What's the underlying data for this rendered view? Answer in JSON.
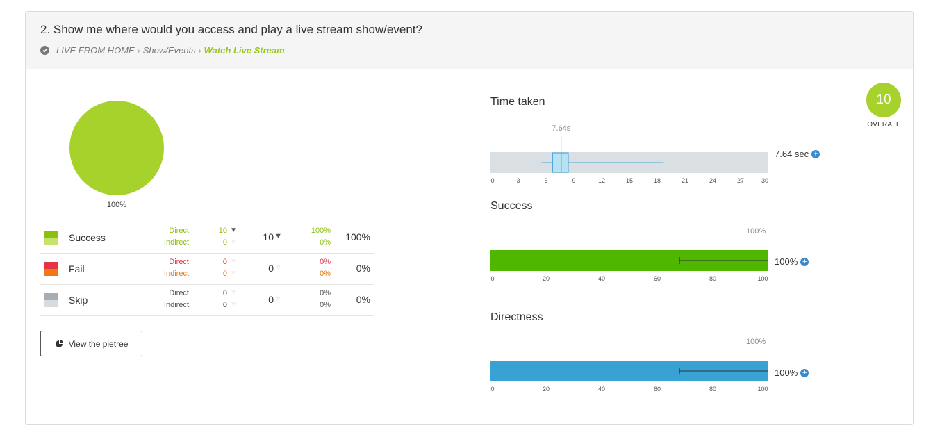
{
  "question": "2. Show me where would you access and play a live stream show/event?",
  "breadcrumb": [
    "LIVE FROM HOME",
    "Show/Events",
    "Watch Live Stream"
  ],
  "pie": {
    "label": "100%",
    "color": "#a6d22b"
  },
  "results": [
    {
      "label": "Success",
      "colors": [
        "#8cbf0e",
        "#c5e36a"
      ],
      "direct_label": "Direct",
      "indirect_label": "Indirect",
      "label_colors": [
        "#8cbf0e",
        "#8cbf0e"
      ],
      "direct": "10",
      "indirect": "0",
      "total": "10",
      "direct_pct": "100%",
      "indirect_pct": "0%",
      "total_pct": "100%",
      "value_colors": [
        "#8cbf0e",
        "#8cbf0e"
      ]
    },
    {
      "label": "Fail",
      "colors": [
        "#e33546",
        "#f07916"
      ],
      "direct_label": "Direct",
      "indirect_label": "Indirect",
      "label_colors": [
        "#e03546",
        "#e77b0d"
      ],
      "direct": "0",
      "indirect": "0",
      "total": "0",
      "direct_pct": "0%",
      "indirect_pct": "0%",
      "total_pct": "0%",
      "value_colors": [
        "#e03546",
        "#e77b0d"
      ]
    },
    {
      "label": "Skip",
      "colors": [
        "#a7adb2",
        "#d6dbdd"
      ],
      "direct_label": "Direct",
      "indirect_label": "Indirect",
      "label_colors": [
        "#555555",
        "#555555"
      ],
      "direct": "0",
      "indirect": "0",
      "total": "0",
      "direct_pct": "0%",
      "indirect_pct": "0%",
      "total_pct": "0%",
      "value_colors": [
        "#555555",
        "#555555"
      ]
    }
  ],
  "pietree_button": "View the pietree",
  "time_taken": {
    "title": "Time taken",
    "median_label": "7.64s",
    "value": "7.64 sec",
    "ticks": [
      "0",
      "3",
      "6",
      "9",
      "12",
      "15",
      "18",
      "21",
      "24",
      "27",
      "30"
    ],
    "range": [
      0,
      30
    ],
    "whisker_low": 5.5,
    "q1": 6.7,
    "median": 7.64,
    "q3": 8.4,
    "whisker_high": 18.7
  },
  "success": {
    "title": "Success",
    "top_label": "100%",
    "value": "100%",
    "percent": 100,
    "error_low": 68,
    "ticks": [
      "0",
      "20",
      "40",
      "60",
      "80",
      "100"
    ],
    "color": "#4fb700"
  },
  "directness": {
    "title": "Directness",
    "top_label": "100%",
    "value": "100%",
    "percent": 100,
    "error_low": 68,
    "ticks": [
      "0",
      "20",
      "40",
      "60",
      "80",
      "100"
    ],
    "color": "#38a2d4"
  },
  "overall": {
    "score": "10",
    "label": "OVERALL"
  }
}
